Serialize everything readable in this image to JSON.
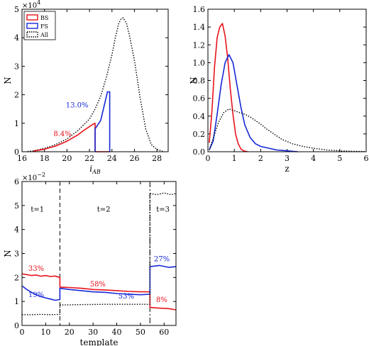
{
  "colors": {
    "bs": "#e8121a",
    "fs": "#1628d8",
    "all": "#000000"
  },
  "chart_data": [
    {
      "id": "iab",
      "type": "line",
      "xlabel": "i_AB",
      "ylabel": "N",
      "multiplier_base": "×10",
      "multiplier_exp": "4",
      "xlim": [
        16,
        29
      ],
      "ylim": [
        0,
        50000
      ],
      "grid": false,
      "xticks": [
        16,
        18,
        20,
        22,
        24,
        26,
        28
      ],
      "yticks": [
        0,
        10000,
        20000,
        30000,
        40000,
        50000
      ],
      "ytick_labels": [
        "0",
        "1",
        "2",
        "3",
        "4",
        "5"
      ],
      "legend": {
        "placement": "top-left",
        "entries": [
          {
            "key": "bs",
            "label": "BS",
            "style": "box"
          },
          {
            "key": "fs",
            "label": "FS",
            "style": "box"
          },
          {
            "key": "all",
            "label": "All",
            "style": "dotted-box"
          }
        ]
      },
      "series": [
        {
          "key": "all",
          "style": "dotted",
          "x": [
            16.5,
            17,
            18,
            19,
            20,
            21,
            22,
            22.5,
            23,
            23.5,
            24,
            24.3,
            24.6,
            24.8,
            25,
            25.3,
            25.6,
            26,
            26.5,
            27,
            27.5,
            28,
            28.5
          ],
          "y": [
            100,
            300,
            1200,
            2500,
            4500,
            7500,
            11500,
            15000,
            19500,
            26000,
            34000,
            40000,
            45000,
            46500,
            47000,
            45000,
            40000,
            32000,
            19000,
            8000,
            2500,
            800,
            200
          ]
        },
        {
          "key": "bs",
          "style": "solid",
          "x": [
            17,
            18,
            19,
            20,
            21,
            21.5,
            22,
            22.3,
            22.5,
            22.5,
            23.8
          ],
          "y": [
            200,
            900,
            2000,
            3700,
            6000,
            7500,
            8800,
            9600,
            10000,
            0,
            0
          ]
        },
        {
          "key": "fs",
          "style": "solid",
          "x": [
            22.5,
            22.5,
            23,
            23.3,
            23.6,
            23.8,
            23.8
          ],
          "y": [
            0,
            8000,
            11000,
            16000,
            21000,
            21000,
            0
          ]
        }
      ],
      "annotations": [
        {
          "text": "8.4%",
          "key": "bs",
          "x": 19.6,
          "y": 5500
        },
        {
          "text": "13.0%",
          "key": "fs",
          "x": 20.9,
          "y": 15500
        }
      ]
    },
    {
      "id": "z",
      "type": "line",
      "xlabel": "z",
      "ylabel": "N",
      "xlim": [
        0,
        6
      ],
      "ylim": [
        0,
        1.6
      ],
      "grid": false,
      "xticks": [
        0,
        1,
        2,
        3,
        4,
        5,
        6
      ],
      "yticks": [
        0,
        0.2,
        0.4,
        0.6,
        0.8,
        1.0,
        1.2,
        1.4,
        1.6
      ],
      "ytick_labels": [
        "0.0",
        "0.2",
        "0.4",
        "0.6",
        "0.8",
        "1.0",
        "1.2",
        "1.4",
        "1.6"
      ],
      "series": [
        {
          "key": "bs",
          "style": "solid",
          "x": [
            0.05,
            0.15,
            0.25,
            0.35,
            0.45,
            0.55,
            0.65,
            0.75,
            0.85,
            0.95,
            1.05,
            1.15,
            1.25,
            1.35,
            1.5
          ],
          "y": [
            0.1,
            0.45,
            0.95,
            1.28,
            1.4,
            1.44,
            1.3,
            1.05,
            0.7,
            0.42,
            0.2,
            0.09,
            0.03,
            0.01,
            0
          ]
        },
        {
          "key": "fs",
          "style": "solid",
          "x": [
            0.05,
            0.2,
            0.35,
            0.5,
            0.65,
            0.8,
            0.95,
            1.1,
            1.25,
            1.4,
            1.6,
            1.8,
            2.0,
            2.3,
            2.6,
            3.0,
            3.4
          ],
          "y": [
            0.02,
            0.12,
            0.42,
            0.75,
            1.0,
            1.09,
            1.0,
            0.75,
            0.5,
            0.3,
            0.16,
            0.09,
            0.06,
            0.04,
            0.02,
            0.01,
            0
          ]
        },
        {
          "key": "all",
          "style": "dotted",
          "x": [
            0.05,
            0.2,
            0.4,
            0.6,
            0.8,
            1.0,
            1.2,
            1.4,
            1.6,
            1.8,
            2.0,
            2.2,
            2.5,
            2.8,
            3.2,
            3.6,
            4.0,
            4.5,
            5.0,
            5.5,
            6.0
          ],
          "y": [
            0.02,
            0.15,
            0.33,
            0.44,
            0.48,
            0.46,
            0.44,
            0.42,
            0.39,
            0.35,
            0.31,
            0.26,
            0.2,
            0.14,
            0.09,
            0.06,
            0.04,
            0.02,
            0.01,
            0.005,
            0.002
          ]
        }
      ]
    },
    {
      "id": "template",
      "type": "line",
      "xlabel": "template",
      "ylabel": "N",
      "multiplier_base": "×10",
      "multiplier_exp": "−2",
      "xlim": [
        0,
        65
      ],
      "ylim": [
        0,
        0.06
      ],
      "grid": false,
      "xticks": [
        0,
        10,
        20,
        30,
        40,
        50,
        60
      ],
      "yticks": [
        0,
        0.01,
        0.02,
        0.03,
        0.04,
        0.05,
        0.06
      ],
      "ytick_labels": [
        "0",
        "1",
        "2",
        "3",
        "4",
        "5",
        "6"
      ],
      "dividers": [
        {
          "x": 16,
          "style": "dashed"
        },
        {
          "x": 54,
          "style": "dashdot"
        }
      ],
      "series": [
        {
          "key": "bs",
          "style": "solid",
          "x": [
            0,
            2,
            4,
            6,
            8,
            10,
            12,
            14,
            16,
            16,
            20,
            25,
            30,
            35,
            40,
            45,
            50,
            54,
            54,
            58,
            62,
            65
          ],
          "y": [
            0.0215,
            0.0212,
            0.0208,
            0.021,
            0.0205,
            0.0208,
            0.0204,
            0.0206,
            0.02,
            0.016,
            0.0158,
            0.0155,
            0.015,
            0.0148,
            0.0145,
            0.0142,
            0.014,
            0.014,
            0.0075,
            0.0072,
            0.007,
            0.0065
          ]
        },
        {
          "key": "fs",
          "style": "solid",
          "x": [
            0,
            2,
            4,
            6,
            8,
            10,
            12,
            14,
            16,
            16,
            20,
            25,
            30,
            35,
            40,
            45,
            50,
            54,
            54,
            58,
            62,
            65
          ],
          "y": [
            0.0165,
            0.015,
            0.0138,
            0.0128,
            0.012,
            0.0115,
            0.011,
            0.0105,
            0.0108,
            0.0155,
            0.015,
            0.0145,
            0.014,
            0.0138,
            0.0133,
            0.013,
            0.0128,
            0.013,
            0.0245,
            0.025,
            0.0242,
            0.0245
          ]
        },
        {
          "key": "all",
          "style": "dotted",
          "x": [
            0,
            4,
            8,
            12,
            16,
            16,
            25,
            35,
            45,
            54,
            54,
            57,
            60,
            63,
            65
          ],
          "y": [
            0.0045,
            0.0045,
            0.0046,
            0.0045,
            0.0046,
            0.0085,
            0.0087,
            0.0088,
            0.0088,
            0.0088,
            0.055,
            0.0545,
            0.0552,
            0.0545,
            0.055
          ]
        }
      ],
      "regions": [
        {
          "text": "t=1",
          "x": 6.5,
          "y": 0.0475
        },
        {
          "text": "t=2",
          "x": 34.5,
          "y": 0.0475
        },
        {
          "text": "t=3",
          "x": 59.5,
          "y": 0.0475
        }
      ],
      "annotations": [
        {
          "text": "33%",
          "key": "bs",
          "x": 6,
          "y": 0.0228
        },
        {
          "text": "19%",
          "key": "fs",
          "x": 6,
          "y": 0.0118
        },
        {
          "text": "58%",
          "key": "bs",
          "x": 32,
          "y": 0.0163
        },
        {
          "text": "53%",
          "key": "fs",
          "x": 44,
          "y": 0.0112
        },
        {
          "text": "27%",
          "key": "fs",
          "x": 59,
          "y": 0.0268
        },
        {
          "text": "8%",
          "key": "bs",
          "x": 59,
          "y": 0.0098
        }
      ]
    }
  ]
}
